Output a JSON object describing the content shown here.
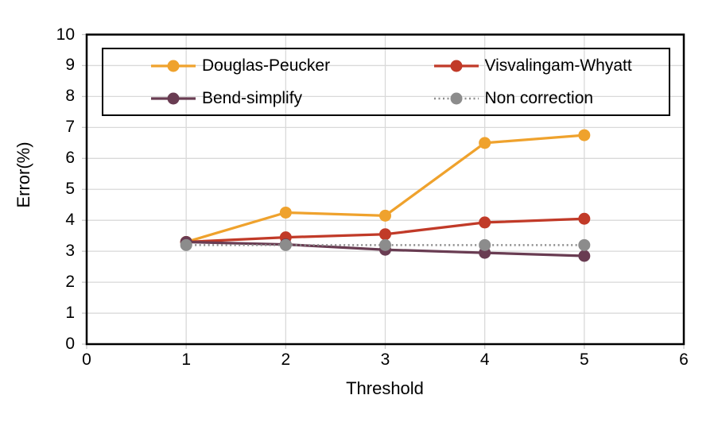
{
  "figure": {
    "background": "#ffffff",
    "frame_color": "#000000",
    "gridline_color": "#d9d9d9",
    "tick_color": "#c9c9c9"
  },
  "chart_data": {
    "type": "line",
    "title": "",
    "xlabel": "Threshold",
    "ylabel": "Error(%)",
    "xlim": [
      0,
      6
    ],
    "ylim": [
      0,
      10
    ],
    "x_ticks": [
      0,
      1,
      2,
      3,
      4,
      5,
      6
    ],
    "y_ticks": [
      0,
      1,
      2,
      3,
      4,
      5,
      6,
      7,
      8,
      9,
      10
    ],
    "grid": true,
    "legend_position": "top-inside",
    "x": [
      1,
      2,
      3,
      4,
      5
    ],
    "series": [
      {
        "name": "Douglas-Peucker",
        "color": "#efa22d",
        "style": "solid",
        "values": [
          3.3,
          4.25,
          4.15,
          6.5,
          6.75
        ]
      },
      {
        "name": "Visvalingam-Whyatt",
        "color": "#c13a28",
        "style": "solid",
        "values": [
          3.3,
          3.45,
          3.55,
          3.93,
          4.05
        ]
      },
      {
        "name": "Bend-simplify",
        "color": "#693c52",
        "style": "solid",
        "values": [
          3.3,
          3.22,
          3.05,
          2.95,
          2.85
        ]
      },
      {
        "name": "Non correction",
        "color": "#8c8c8c",
        "style": "dotted",
        "values": [
          3.2,
          3.2,
          3.2,
          3.2,
          3.2
        ]
      }
    ]
  }
}
